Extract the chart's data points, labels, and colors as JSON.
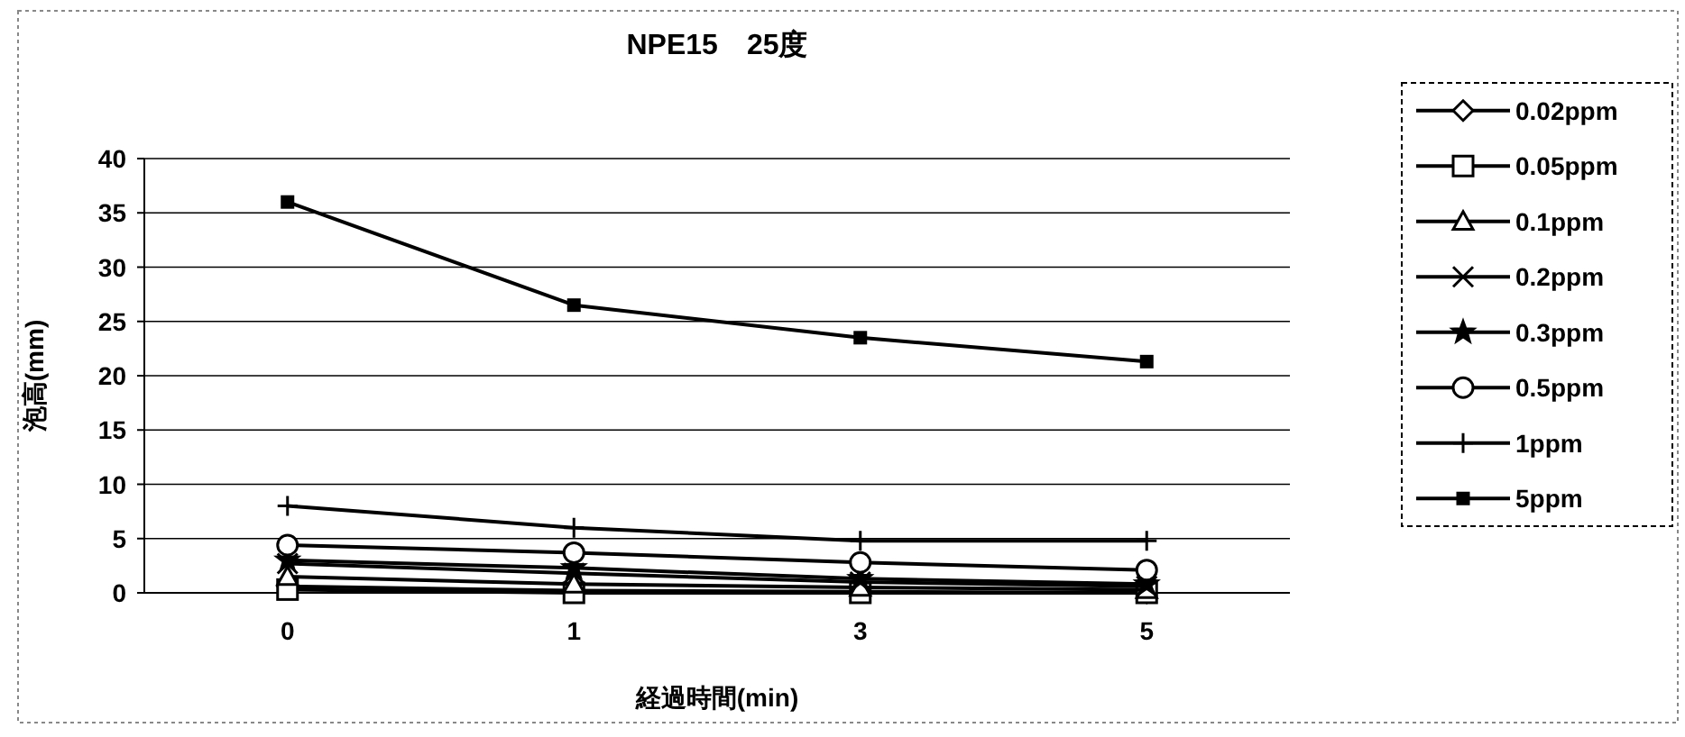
{
  "chart_data": {
    "type": "line",
    "title": "NPE15　25度",
    "xlabel": "経過時間(min)",
    "ylabel": "泡高(mm)",
    "categories": [
      "0",
      "1",
      "3",
      "5"
    ],
    "ylim": [
      0,
      40
    ],
    "yticks": [
      0,
      5,
      10,
      15,
      20,
      25,
      30,
      35,
      40
    ],
    "grid": "y",
    "legend": "right",
    "series": [
      {
        "name": "0.02ppm",
        "color": "#000000",
        "marker": "diamond",
        "values": [
          0.6,
          0.2,
          0.1,
          0
        ]
      },
      {
        "name": "0.05ppm",
        "color": "#000000",
        "marker": "square",
        "values": [
          0.3,
          0,
          0,
          0
        ]
      },
      {
        "name": "0.1ppm",
        "color": "#000000",
        "marker": "triangle",
        "values": [
          1.5,
          0.8,
          0.5,
          0.3
        ]
      },
      {
        "name": "0.2ppm",
        "color": "#000000",
        "marker": "cross",
        "values": [
          2.7,
          1.8,
          1.0,
          0.6
        ]
      },
      {
        "name": "0.3ppm",
        "color": "#000000",
        "marker": "star",
        "values": [
          3,
          2.3,
          1.3,
          0.8
        ]
      },
      {
        "name": "0.5ppm",
        "color": "#000000",
        "marker": "circle",
        "values": [
          4.4,
          3.7,
          2.8,
          2.1
        ]
      },
      {
        "name": "1ppm",
        "color": "#000000",
        "marker": "plus",
        "values": [
          8,
          6,
          4.8,
          4.8
        ]
      },
      {
        "name": "5ppm",
        "color": "#000000",
        "marker": "square",
        "values": [
          36,
          26.5,
          23.5,
          21.3
        ]
      }
    ]
  }
}
